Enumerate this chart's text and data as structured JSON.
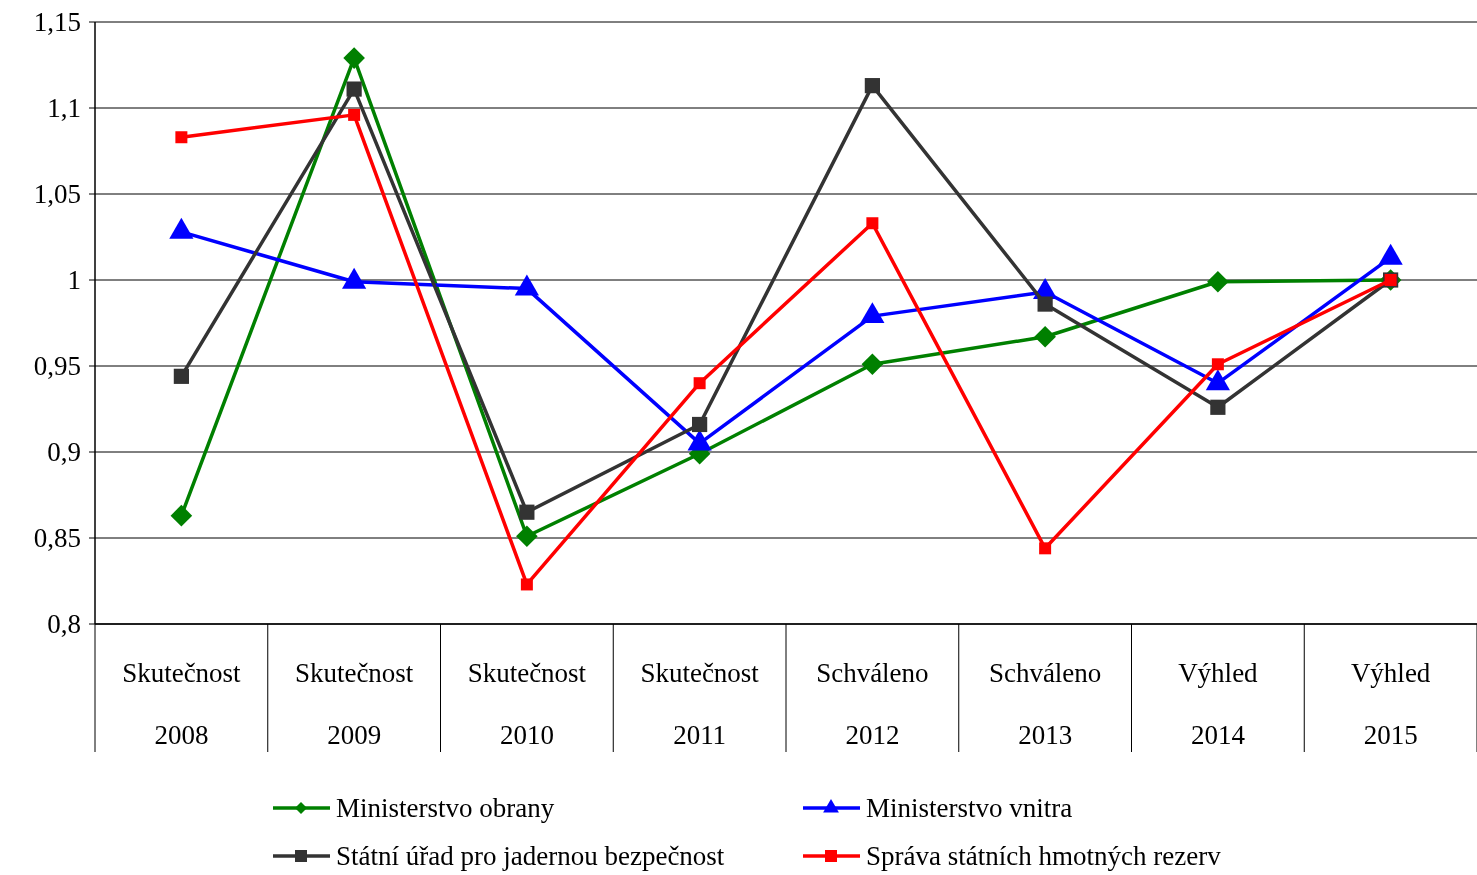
{
  "chart_data": {
    "type": "line",
    "categories": [
      "Skutečnost\n2008",
      "Skutečnost\n2009",
      "Skutečnost\n2010",
      "Skutečnost\n2011",
      "Schváleno\n2012",
      "Schváleno\n2013",
      "Výhled\n2014",
      "Výhled\n2015"
    ],
    "series": [
      {
        "name": "Ministerstvo obrany",
        "color": "#008000",
        "marker": "diamond",
        "values": [
          0.863,
          1.129,
          0.851,
          0.899,
          0.951,
          0.967,
          0.999,
          1.0
        ]
      },
      {
        "name": "Ministerstvo vnitra",
        "color": "#0000ff",
        "marker": "triangle",
        "values": [
          1.028,
          0.999,
          0.995,
          0.905,
          0.979,
          0.993,
          0.94,
          1.013
        ]
      },
      {
        "name": "Státní úřad pro jadernou bezpečnost",
        "color": "#333333",
        "marker": "square",
        "values": [
          0.944,
          1.111,
          0.865,
          0.916,
          1.113,
          0.986,
          0.926,
          1.0
        ]
      },
      {
        "name": "Správa státních hmotných rezerv",
        "color": "#ff0000",
        "marker": "square",
        "values": [
          1.083,
          1.096,
          0.823,
          0.94,
          1.033,
          0.844,
          0.951,
          1.0
        ]
      }
    ],
    "ylim": [
      0.8,
      1.15
    ],
    "yticks": [
      {
        "value": 0.8,
        "label": "0,8"
      },
      {
        "value": 0.85,
        "label": "0,85"
      },
      {
        "value": 0.9,
        "label": "0,9"
      },
      {
        "value": 0.95,
        "label": "0,95"
      },
      1,
      {
        "value": 1.05,
        "label": "1,05"
      },
      {
        "value": 1.1,
        "label": "1,1"
      },
      {
        "value": 1.15,
        "label": "1,15"
      }
    ],
    "grid": "y",
    "legend": "bottom",
    "line_style": "solid"
  }
}
